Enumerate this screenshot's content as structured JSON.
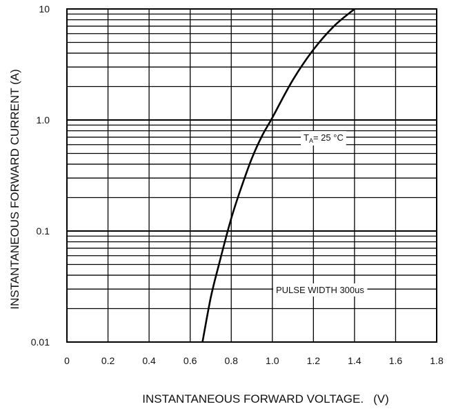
{
  "chart_data": {
    "type": "line",
    "xlabel": "INSTANTANEOUS FORWARD VOLTAGE.",
    "xunit": "(V)",
    "ylabel": "INSTANTANEOUS FORWARD CURRENT (A)",
    "x_ticks": [
      "0",
      "0.2",
      "0.4",
      "0.6",
      "0.8",
      "1.0",
      "1.2",
      "1.4",
      "1.6",
      "1.8"
    ],
    "y_ticks": [
      "0.01",
      "0.1",
      "1.0",
      "10"
    ],
    "xlim": [
      0,
      1.8
    ],
    "ylim": [
      0.01,
      10
    ],
    "y_scale": "log",
    "grid": true,
    "annotations": {
      "temp_prefix": "T",
      "temp_sub": "A",
      "temp_value": "= 25 °C",
      "pulse": "PULSE WIDTH 300us"
    },
    "series": [
      {
        "x": [
          0.66,
          0.7,
          0.74,
          0.8,
          0.85,
          0.9,
          0.95,
          1.0,
          1.1,
          1.2,
          1.3,
          1.4
        ],
        "y": [
          0.01,
          0.025,
          0.05,
          0.13,
          0.25,
          0.45,
          0.72,
          1.05,
          2.3,
          4.3,
          7.0,
          10.0
        ]
      }
    ]
  }
}
